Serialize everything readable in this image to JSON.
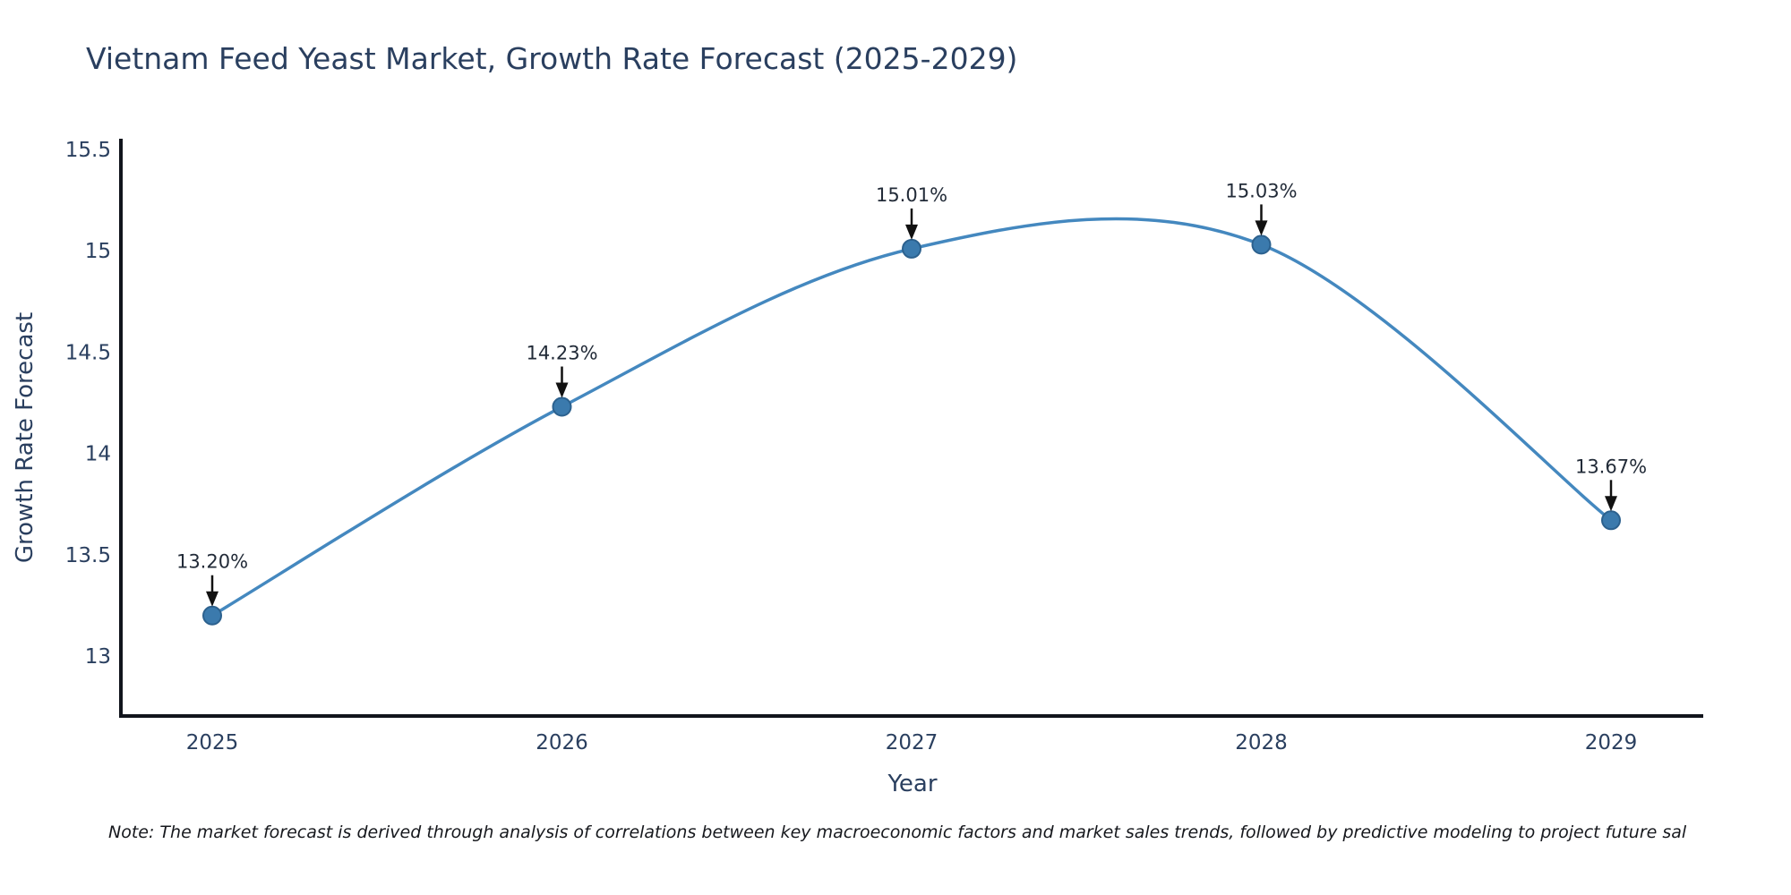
{
  "title": "Vietnam Feed Yeast Market, Growth Rate Forecast (2025-2029)",
  "note": "Note: The market forecast is derived through analysis of correlations between key macroeconomic factors and market sales trends, followed by predictive modeling to project future sal",
  "chart_data": {
    "type": "line",
    "title": "Vietnam Feed Yeast Market, Growth Rate Forecast (2025-2029)",
    "xlabel": "Year",
    "ylabel": "Growth Rate Forecast",
    "x": [
      2025,
      2026,
      2027,
      2028,
      2029
    ],
    "x_tick_labels": [
      "2025",
      "2026",
      "2027",
      "2028",
      "2029"
    ],
    "series": [
      {
        "name": "Growth Rate Forecast",
        "values": [
          13.2,
          14.23,
          15.01,
          15.03,
          13.67
        ]
      }
    ],
    "point_labels": [
      "13.20%",
      "14.23%",
      "15.01%",
      "15.03%",
      "13.67%"
    ],
    "y_ticks": [
      13,
      13.5,
      14,
      14.5,
      15,
      15.5
    ],
    "y_tick_labels": [
      "13",
      "13.5",
      "14",
      "14.5",
      "15",
      "15.5"
    ],
    "ylim": [
      12.7,
      15.55
    ],
    "grid": false,
    "legend": "none",
    "line_shape": "spline",
    "annotation_arrows": true,
    "colors": {
      "line": "#4488bf",
      "marker": "#3b7aad",
      "marker_edge": "#2c618e",
      "axis": "#11141c",
      "text": "#2a3f5f",
      "annotation": "#222b38",
      "arrow": "#111111",
      "note": "#16181d",
      "background": "#ffffff"
    }
  }
}
